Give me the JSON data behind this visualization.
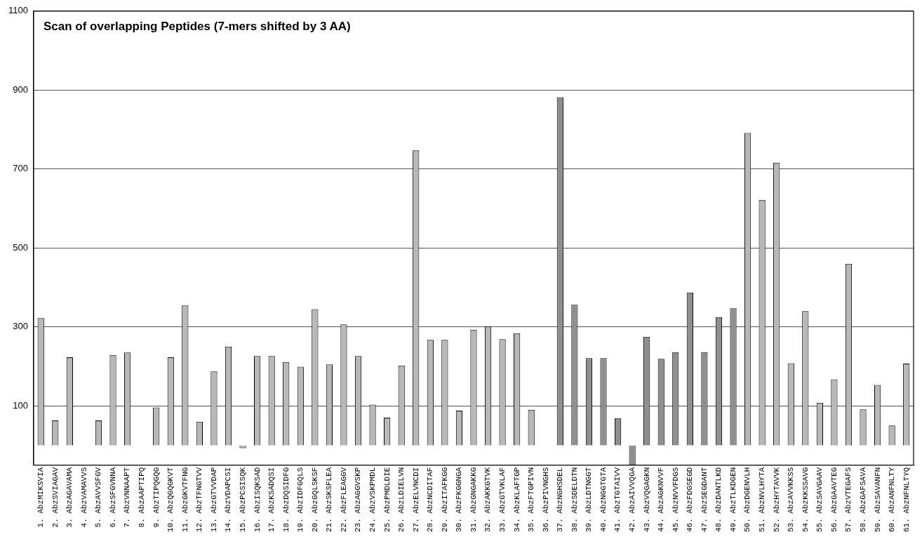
{
  "chart_data": {
    "type": "bar",
    "title": "Scan of overlapping Peptides (7-mers shifted by 3 AA)",
    "categories": [
      "1. AbzMIKSVIA",
      "2. AbzSVIAGAV",
      "3. AbzAGAVAMA",
      "4. AbzVAMAVVS",
      "5. AbzAVVSFGV",
      "6. AbzSFGVNNA",
      "7. AbzVNNAAPT",
      "8. AbzAAPTIPQ",
      "9. AbzTIPQGQG",
      "10. AbzQGQGKVT",
      "11. AbzGKVTFNG",
      "12. AbzTFNGTVV",
      "13. AbzGTVVDAP",
      "14. AbzVDAPCSI",
      "15. AbzPCSISQK",
      "16. AbzISQKSAD",
      "17. AbzKSADQSI",
      "18. AbzDQSIDFG",
      "19. AbzIDFGQLS",
      "20. AbzGQLSKSF",
      "21. AbzSKSFLEA",
      "22. AbzFLEAGGV",
      "23. AbzAGGVSKP",
      "24. AbzVSKPMDL",
      "25. AbzPMDLDIE",
      "26. AbzLDIELVN",
      "27. AbzELVNCDI",
      "28. AbzNCDITAF",
      "29. AbzITAFKGG",
      "30. AbzFKGGNGA",
      "31. AbzGNGAKKG",
      "32. AbzAKKGTVK",
      "33. AbzGTVKLAF",
      "34. AbzKLAFTGP",
      "35. AbzFTGPIVN",
      "36. AbzPIVNGHS",
      "37. AbzNGHSDEL",
      "38. AbzSDELDTN",
      "39. AbzLDTNGGT",
      "40. AbzNGGTGTA",
      "41. AbzTGTAIVV",
      "42. AbzAIVVQGA",
      "43. AbzVQGAGKN",
      "44. AbzAGKNVVF",
      "45. AbzNVVFDGS",
      "46. AbzFDGSEGD",
      "47. AbzSEGDANT",
      "48. AbzDANTLKD",
      "49. AbzTLKDGEN",
      "50. AbzDGENVLH",
      "51. AbzNVLHYTA",
      "52. AbzHYTAVVK",
      "53. AbzAVVKKSS",
      "54. AbzKKSSAVG",
      "55. AbzSAVGAAV",
      "56. AbzGAAVTEG",
      "57. AbzVTEGAFS",
      "58. AbzGAFSAVA",
      "59. AbzSAVANFN",
      "60. AbzANFNLTY",
      "61. AbzNFNLTYQ"
    ],
    "values": [
      322,
      63,
      223,
      0,
      63,
      229,
      235,
      0,
      96,
      223,
      354,
      60,
      187,
      250,
      -7,
      226,
      226,
      211,
      199,
      345,
      205,
      306,
      226,
      103,
      70,
      202,
      747,
      267,
      267,
      88,
      293,
      301,
      269,
      284,
      90,
      0,
      882,
      356,
      221,
      221,
      69,
      -50,
      275,
      219,
      236,
      387,
      236,
      325,
      347,
      791,
      622,
      716,
      208,
      340,
      108,
      167,
      460,
      91,
      153,
      50,
      207
    ],
    "colors": [
      "#b8b8b8",
      "#b8b8b8",
      "#b8b8b8",
      "#b8b8b8",
      "#b8b8b8",
      "#b8b8b8",
      "#b8b8b8",
      "#b8b8b8",
      "#b8b8b8",
      "#b8b8b8",
      "#b8b8b8",
      "#b8b8b8",
      "#b8b8b8",
      "#b8b8b8",
      "#b8b8b8",
      "#b8b8b8",
      "#b8b8b8",
      "#b8b8b8",
      "#b8b8b8",
      "#b8b8b8",
      "#b8b8b8",
      "#b8b8b8",
      "#b8b8b8",
      "#b8b8b8",
      "#b8b8b8",
      "#b8b8b8",
      "#b8b8b8",
      "#b8b8b8",
      "#b8b8b8",
      "#b8b8b8",
      "#b8b8b8",
      "#b8b8b8",
      "#b8b8b8",
      "#b8b8b8",
      "#b8b8b8",
      "#b8b8b8",
      "#8f8f8f",
      "#8f8f8f",
      "#8f8f8f",
      "#8f8f8f",
      "#8f8f8f",
      "#8f8f8f",
      "#8f8f8f",
      "#8f8f8f",
      "#8f8f8f",
      "#8f8f8f",
      "#8f8f8f",
      "#8f8f8f",
      "#8f8f8f",
      "#b8b8b8",
      "#b8b8b8",
      "#b8b8b8",
      "#b8b8b8",
      "#b8b8b8",
      "#b8b8b8",
      "#b8b8b8",
      "#b8b8b8",
      "#b8b8b8",
      "#b8b8b8",
      "#b8b8b8",
      "#b8b8b8"
    ],
    "ylim": [
      -50,
      1100
    ],
    "yticks": [
      100,
      300,
      500,
      700,
      900,
      1100
    ],
    "grid": "y"
  }
}
